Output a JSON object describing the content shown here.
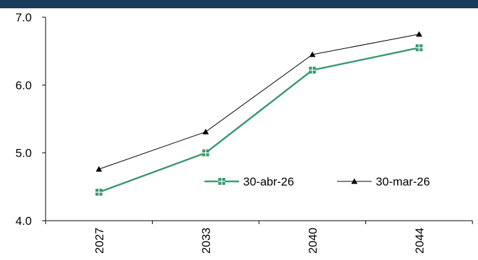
{
  "chart_data": {
    "type": "line",
    "categories": [
      "2027",
      "2033",
      "2040",
      "2044"
    ],
    "series": [
      {
        "name": "30-abr-26",
        "values": [
          4.42,
          5.0,
          6.22,
          6.55
        ],
        "color": "#3a9a6e",
        "marker": "square-cross"
      },
      {
        "name": "30-mar-26",
        "values": [
          4.76,
          5.31,
          6.45,
          6.75
        ],
        "color": "#000000",
        "marker": "triangle"
      }
    ],
    "y_ticks": [
      "4.0",
      "5.0",
      "6.0",
      "7.0"
    ],
    "ylim": [
      4.0,
      7.0
    ],
    "grid": false,
    "legend_position": "lower-right-inside",
    "title": "",
    "xlabel": "",
    "ylabel": ""
  }
}
